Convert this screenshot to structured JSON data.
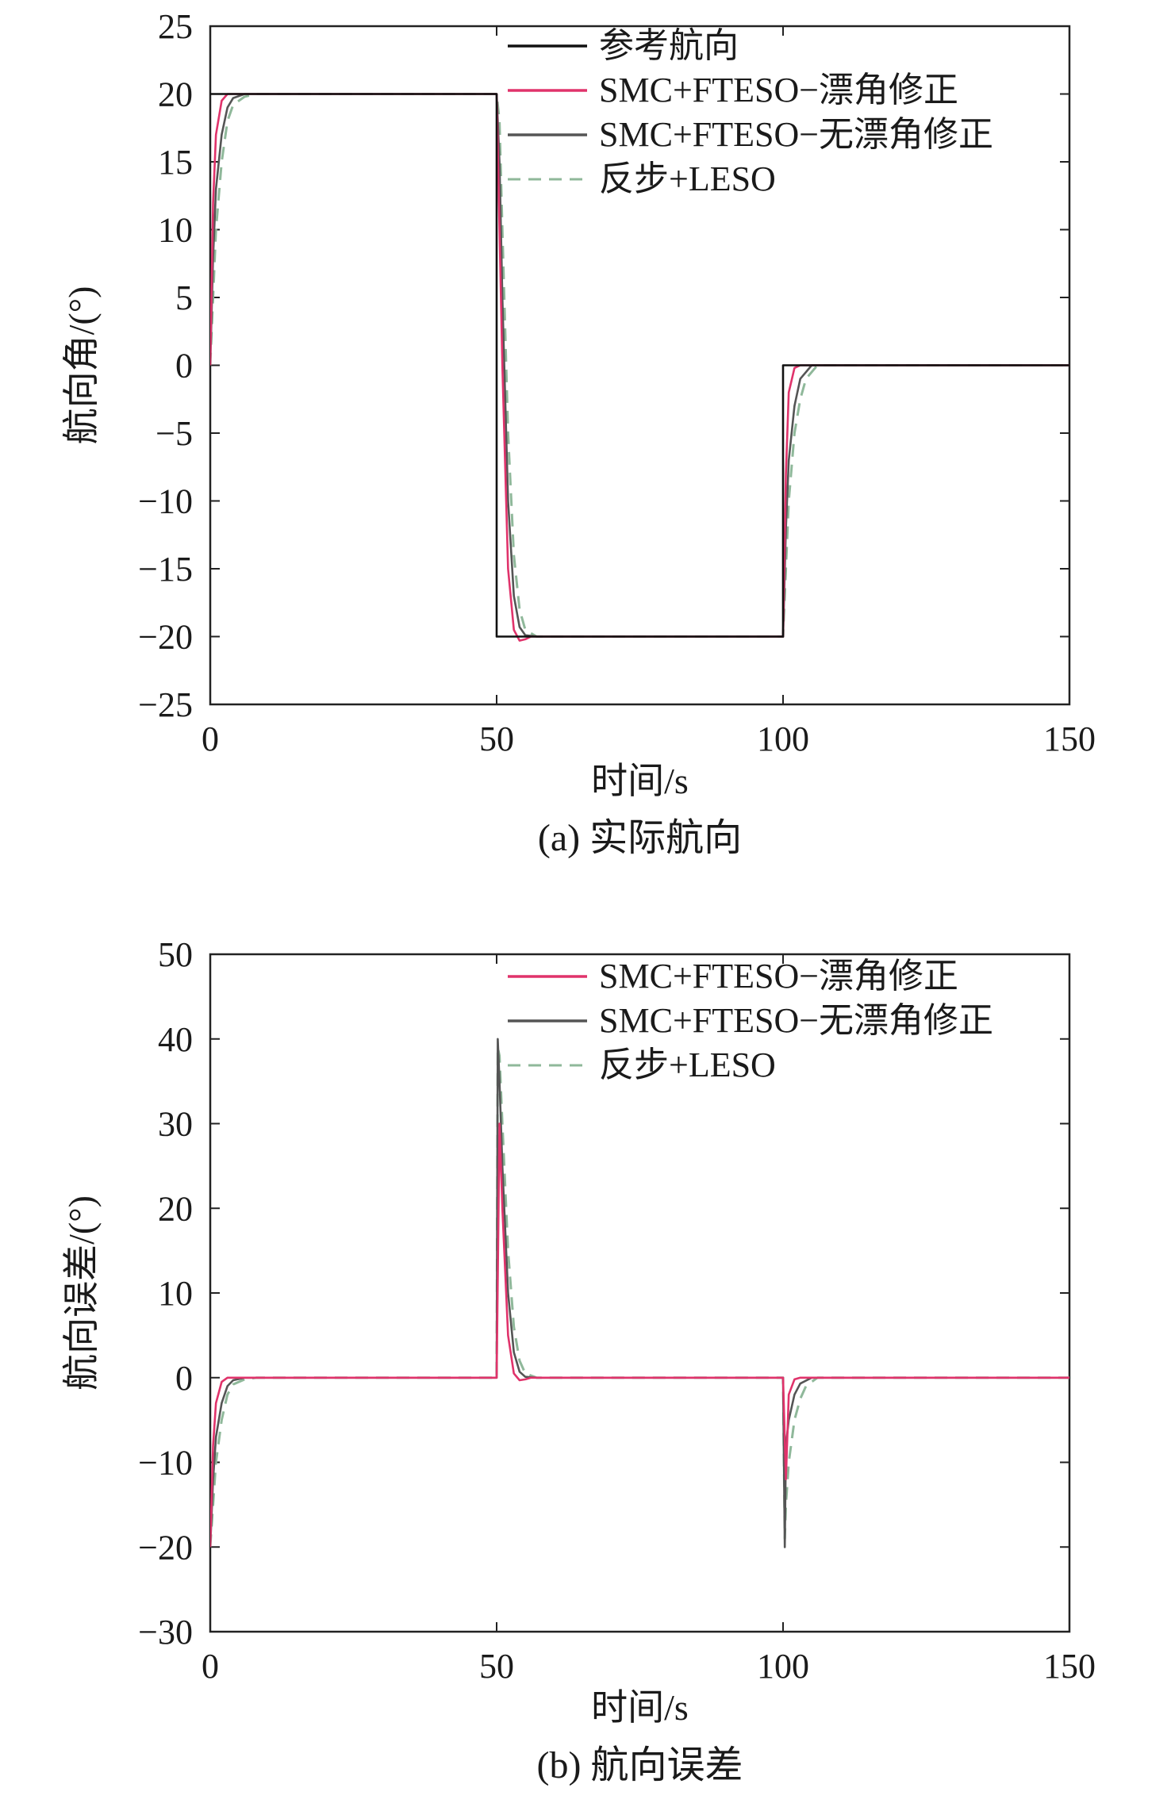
{
  "chart_data": [
    {
      "type": "line",
      "caption": "(a) 实际航向",
      "xlabel": "时间/s",
      "ylabel": "航向角/(°)",
      "xlim": [
        0,
        150
      ],
      "ylim": [
        -25,
        25
      ],
      "xticks": [
        "0",
        "50",
        "100",
        "150"
      ],
      "yticks": [
        "25",
        "20",
        "15",
        "10",
        "5",
        "0",
        "−5",
        "−10",
        "−15",
        "−20",
        "−25"
      ],
      "legend": "top-right",
      "series": [
        {
          "name": "参考航向",
          "color": "#111111",
          "dash": "solid",
          "x": [
            0,
            50,
            50,
            100,
            100,
            150
          ],
          "y": [
            20,
            20,
            -20,
            -20,
            0,
            0
          ]
        },
        {
          "name": "SMC+FTESO−漂角修正",
          "color": "#e0336b",
          "dash": "solid",
          "x": [
            0,
            0.5,
            1,
            2,
            3,
            4,
            50,
            50.5,
            51,
            52,
            53,
            54,
            55,
            56,
            100,
            100.5,
            101,
            102,
            103,
            150
          ],
          "y": [
            0,
            12,
            17,
            19.5,
            20,
            20,
            20,
            10,
            0,
            -15,
            -19.5,
            -20.3,
            -20.2,
            -20,
            -20,
            -8,
            -2,
            -0.2,
            0,
            0
          ]
        },
        {
          "name": "SMC+FTESO−无漂角修正",
          "color": "#555555",
          "dash": "solid",
          "x": [
            0,
            0.5,
            1,
            2,
            3,
            4,
            6,
            50,
            50.5,
            51,
            52,
            53,
            54,
            55,
            57,
            100,
            100.5,
            101,
            102,
            103,
            105,
            150
          ],
          "y": [
            0,
            8,
            13,
            17,
            19,
            19.7,
            20,
            20,
            15,
            5,
            -10,
            -17,
            -19.3,
            -19.9,
            -20,
            -20,
            -12,
            -7,
            -3,
            -1,
            0,
            0
          ]
        },
        {
          "name": "反步+LESO",
          "color": "#8fb89a",
          "dash": "dashed",
          "x": [
            0,
            0.5,
            1,
            2,
            3,
            4,
            6,
            8,
            50,
            50.5,
            51,
            52,
            53,
            54,
            55,
            57,
            59,
            100,
            100.5,
            101,
            102,
            103,
            104,
            106,
            150
          ],
          "y": [
            0,
            5,
            10,
            15,
            18,
            19.2,
            19.8,
            20,
            20,
            18,
            10,
            -5,
            -14,
            -18,
            -19.5,
            -20,
            -20,
            -20,
            -15,
            -10,
            -5,
            -2.5,
            -1,
            0,
            0
          ]
        }
      ]
    },
    {
      "type": "line",
      "caption": "(b) 航向误差",
      "xlabel": "时间/s",
      "ylabel": "航向误差/(°)",
      "xlim": [
        0,
        150
      ],
      "ylim": [
        -30,
        50
      ],
      "xticks": [
        "0",
        "50",
        "100",
        "150"
      ],
      "yticks": [
        "50",
        "40",
        "30",
        "20",
        "10",
        "0",
        "−10",
        "−20",
        "−30"
      ],
      "legend": "top-right",
      "series": [
        {
          "name": "SMC+FTESO−漂角修正",
          "color": "#e0336b",
          "dash": "solid",
          "x": [
            0,
            0.5,
            1,
            2,
            3,
            4,
            50,
            50.5,
            51,
            52,
            53,
            54,
            55,
            56,
            100,
            100.5,
            101,
            102,
            103,
            150
          ],
          "y": [
            -20,
            -8,
            -3,
            -0.5,
            0,
            0,
            0,
            30,
            20,
            5,
            0.5,
            -0.3,
            -0.2,
            0,
            0,
            -12,
            -2,
            -0.2,
            0,
            0
          ]
        },
        {
          "name": "SMC+FTESO−无漂角修正",
          "color": "#555555",
          "dash": "solid",
          "x": [
            0,
            0.5,
            1,
            2,
            3,
            4,
            6,
            50,
            50.2,
            50.5,
            51,
            52,
            53,
            54,
            55,
            57,
            100,
            100.3,
            100.5,
            101,
            102,
            103,
            105,
            150
          ],
          "y": [
            -20,
            -12,
            -7,
            -3,
            -1,
            -0.3,
            0,
            0,
            40,
            35,
            25,
            10,
            3,
            0.7,
            0.1,
            0,
            0,
            -20,
            -8,
            -5,
            -2,
            -0.7,
            0,
            0
          ]
        },
        {
          "name": "反步+LESO",
          "color": "#8fb89a",
          "dash": "dashed",
          "x": [
            0,
            0.5,
            1,
            2,
            3,
            4,
            6,
            8,
            50,
            50.2,
            50.5,
            51,
            52,
            53,
            54,
            55,
            57,
            59,
            100,
            100.3,
            100.5,
            101,
            102,
            103,
            104,
            106,
            150
          ],
          "y": [
            -20,
            -15,
            -10,
            -5,
            -2,
            -0.8,
            -0.2,
            0,
            0,
            39,
            38,
            30,
            15,
            6,
            2,
            0.5,
            0,
            0,
            0,
            -19,
            -15,
            -10,
            -5,
            -2.5,
            -1,
            0,
            0
          ]
        }
      ]
    }
  ]
}
